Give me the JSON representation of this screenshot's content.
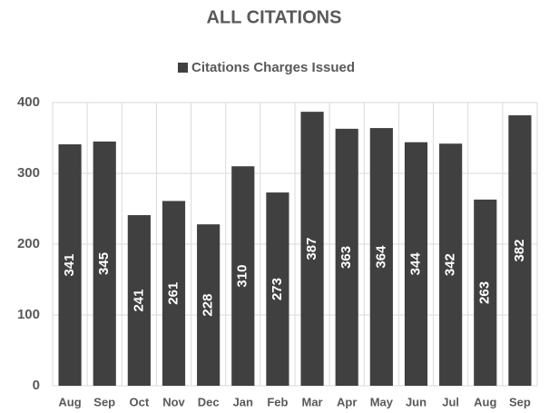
{
  "chart_data": {
    "type": "bar",
    "title": "ALL CITATIONS",
    "series": [
      {
        "name": "Citations Charges Issued",
        "color": "#404040",
        "values": [
          341,
          345,
          241,
          261,
          228,
          310,
          273,
          387,
          363,
          364,
          344,
          342,
          263,
          382
        ]
      }
    ],
    "categories": [
      "Aug",
      "Sep",
      "Oct",
      "Nov",
      "Dec",
      "Jan",
      "Feb",
      "Mar",
      "Apr",
      "May",
      "Jun",
      "Jul",
      "Aug",
      "Sep"
    ],
    "ylim": [
      0,
      400
    ],
    "yticks": [
      0,
      100,
      200,
      300,
      400
    ],
    "grid": true,
    "legend": "top"
  }
}
